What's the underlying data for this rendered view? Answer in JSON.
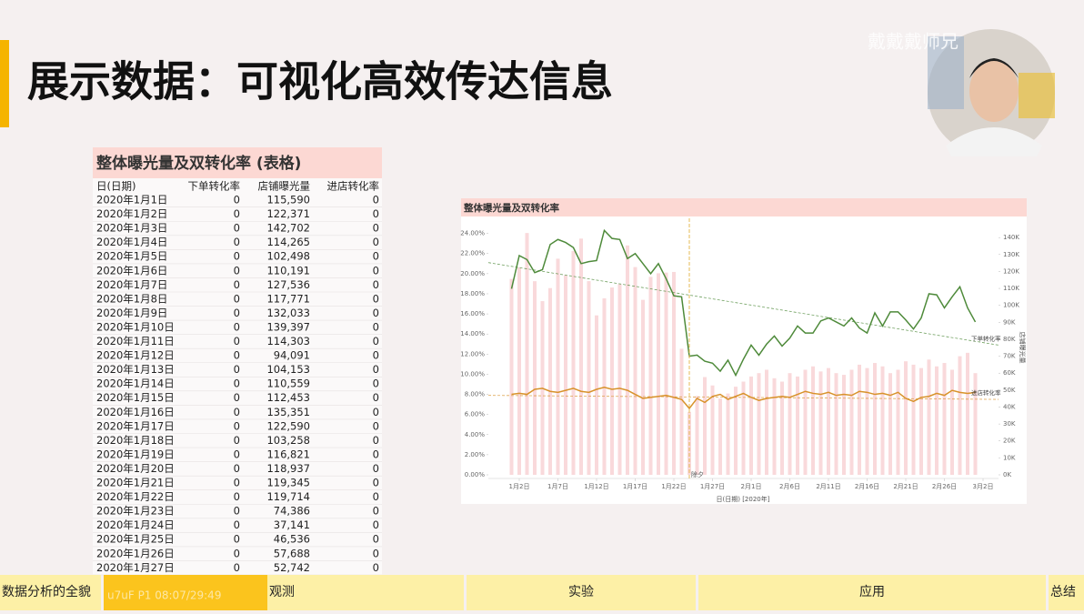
{
  "header": {
    "title": "展示数据：可视化高效传达信息"
  },
  "watermark": {
    "channel": "戴戴戴师兄",
    "player": "u7uF P1 08:07/29:49"
  },
  "table": {
    "title": "整体曝光量及双转化率 (表格)",
    "columns": [
      "日(日期)",
      "下单转化率",
      "店铺曝光量",
      "进店转化率"
    ],
    "rows": [
      [
        "2020年1月1日",
        "0",
        "115,590",
        "0"
      ],
      [
        "2020年1月2日",
        "0",
        "122,371",
        "0"
      ],
      [
        "2020年1月3日",
        "0",
        "142,702",
        "0"
      ],
      [
        "2020年1月4日",
        "0",
        "114,265",
        "0"
      ],
      [
        "2020年1月5日",
        "0",
        "102,498",
        "0"
      ],
      [
        "2020年1月6日",
        "0",
        "110,191",
        "0"
      ],
      [
        "2020年1月7日",
        "0",
        "127,536",
        "0"
      ],
      [
        "2020年1月8日",
        "0",
        "117,771",
        "0"
      ],
      [
        "2020年1月9日",
        "0",
        "132,033",
        "0"
      ],
      [
        "2020年1月10日",
        "0",
        "139,397",
        "0"
      ],
      [
        "2020年1月11日",
        "0",
        "114,303",
        "0"
      ],
      [
        "2020年1月12日",
        "0",
        "94,091",
        "0"
      ],
      [
        "2020年1月13日",
        "0",
        "104,153",
        "0"
      ],
      [
        "2020年1月14日",
        "0",
        "110,559",
        "0"
      ],
      [
        "2020年1月15日",
        "0",
        "112,453",
        "0"
      ],
      [
        "2020年1月16日",
        "0",
        "135,351",
        "0"
      ],
      [
        "2020年1月17日",
        "0",
        "122,590",
        "0"
      ],
      [
        "2020年1月18日",
        "0",
        "103,258",
        "0"
      ],
      [
        "2020年1月19日",
        "0",
        "116,821",
        "0"
      ],
      [
        "2020年1月20日",
        "0",
        "118,937",
        "0"
      ],
      [
        "2020年1月21日",
        "0",
        "119,345",
        "0"
      ],
      [
        "2020年1月22日",
        "0",
        "119,714",
        "0"
      ],
      [
        "2020年1月23日",
        "0",
        "74,386",
        "0"
      ],
      [
        "2020年1月24日",
        "0",
        "37,141",
        "0"
      ],
      [
        "2020年1月25日",
        "0",
        "46,536",
        "0"
      ],
      [
        "2020年1月26日",
        "0",
        "57,688",
        "0"
      ],
      [
        "2020年1月27日",
        "0",
        "52,742",
        "0"
      ]
    ]
  },
  "chart_data": {
    "type": "combo",
    "title": "整体曝光量及双转化率",
    "xlabel": "日(日期) [2020年]",
    "y2label": "店铺曝光量",
    "x": [
      "2020-01-01",
      "2020-01-02",
      "2020-01-03",
      "2020-01-04",
      "2020-01-05",
      "2020-01-06",
      "2020-01-07",
      "2020-01-08",
      "2020-01-09",
      "2020-01-10",
      "2020-01-11",
      "2020-01-12",
      "2020-01-13",
      "2020-01-14",
      "2020-01-15",
      "2020-01-16",
      "2020-01-17",
      "2020-01-18",
      "2020-01-19",
      "2020-01-20",
      "2020-01-21",
      "2020-01-22",
      "2020-01-23",
      "2020-01-24",
      "2020-01-25",
      "2020-01-26",
      "2020-01-27",
      "2020-01-28",
      "2020-01-29",
      "2020-01-30",
      "2020-01-31",
      "2020-02-01",
      "2020-02-02",
      "2020-02-03",
      "2020-02-04",
      "2020-02-05",
      "2020-02-06",
      "2020-02-07",
      "2020-02-08",
      "2020-02-09",
      "2020-02-10",
      "2020-02-11",
      "2020-02-12",
      "2020-02-13",
      "2020-02-14",
      "2020-02-15",
      "2020-02-16",
      "2020-02-17",
      "2020-02-18",
      "2020-02-19",
      "2020-02-20",
      "2020-02-21",
      "2020-02-22",
      "2020-02-23",
      "2020-02-24",
      "2020-02-25",
      "2020-02-26",
      "2020-02-27",
      "2020-02-28",
      "2020-02-29",
      "2020-03-01"
    ],
    "xlim": [
      "2019-12-29",
      "2020-03-04"
    ],
    "xticks": [
      {
        "value": "2020-01-02",
        "label": "1月2日"
      },
      {
        "value": "2020-01-07",
        "label": "1月7日"
      },
      {
        "value": "2020-01-12",
        "label": "1月12日"
      },
      {
        "value": "2020-01-17",
        "label": "1月17日"
      },
      {
        "value": "2020-01-22",
        "label": "1月22日"
      },
      {
        "value": "2020-01-27",
        "label": "1月27日"
      },
      {
        "value": "2020-02-01",
        "label": "2月1日"
      },
      {
        "value": "2020-02-06",
        "label": "2月6日"
      },
      {
        "value": "2020-02-11",
        "label": "2月11日"
      },
      {
        "value": "2020-02-16",
        "label": "2月16日"
      },
      {
        "value": "2020-02-21",
        "label": "2月21日"
      },
      {
        "value": "2020-02-26",
        "label": "2月26日"
      },
      {
        "value": "2020-03-02",
        "label": "3月2日"
      }
    ],
    "ylim": [
      0,
      24.6
    ],
    "yticks": [
      {
        "value": 0,
        "label": "0.00%"
      },
      {
        "value": 2,
        "label": "2.00%"
      },
      {
        "value": 4,
        "label": "4.00%"
      },
      {
        "value": 6,
        "label": "6.00%"
      },
      {
        "value": 8,
        "label": "8.00%"
      },
      {
        "value": 10,
        "label": "10.00%"
      },
      {
        "value": 12,
        "label": "12.00%"
      },
      {
        "value": 14,
        "label": "14.00%"
      },
      {
        "value": 16,
        "label": "16.00%"
      },
      {
        "value": 18,
        "label": "18.00%"
      },
      {
        "value": 20,
        "label": "20.00%"
      },
      {
        "value": 22,
        "label": "22.00%"
      },
      {
        "value": 24,
        "label": "24.00%"
      }
    ],
    "y2lim": [
      0,
      146000
    ],
    "y2ticks": [
      {
        "value": 0,
        "label": "0K"
      },
      {
        "value": 10000,
        "label": "10K"
      },
      {
        "value": 20000,
        "label": "20K"
      },
      {
        "value": 30000,
        "label": "30K"
      },
      {
        "value": 40000,
        "label": "40K"
      },
      {
        "value": 50000,
        "label": "50K"
      },
      {
        "value": 60000,
        "label": "60K"
      },
      {
        "value": 70000,
        "label": "70K"
      },
      {
        "value": 80000,
        "label": "80K"
      },
      {
        "value": 90000,
        "label": "90K"
      },
      {
        "value": 100000,
        "label": "100K"
      },
      {
        "value": 110000,
        "label": "110K"
      },
      {
        "value": 120000,
        "label": "120K"
      },
      {
        "value": 130000,
        "label": "130K"
      },
      {
        "value": 140000,
        "label": "140K"
      }
    ],
    "series": [
      {
        "name": "店铺曝光量",
        "type": "bar",
        "axis": "y2",
        "color": "#f6c9cc",
        "values": [
          115590,
          122371,
          142702,
          114265,
          102498,
          110191,
          127536,
          117771,
          132033,
          139397,
          114303,
          94091,
          104153,
          110559,
          112453,
          135351,
          122590,
          103258,
          116821,
          118937,
          119345,
          119714,
          74386,
          37141,
          46536,
          57688,
          52742,
          45000,
          48000,
          52000,
          55000,
          58000,
          60000,
          62000,
          57000,
          55000,
          60000,
          58000,
          62000,
          64000,
          61000,
          63000,
          60000,
          59000,
          62000,
          65000,
          63000,
          66000,
          64000,
          60000,
          62000,
          67000,
          65000,
          63000,
          68000,
          64000,
          66000,
          62000,
          70000,
          72000,
          60000
        ]
      },
      {
        "name": "下单转化率",
        "type": "line",
        "color": "#4e8a3a",
        "values": [
          18.5,
          21.8,
          21.4,
          20.1,
          20.4,
          22.9,
          23.4,
          23.1,
          22.6,
          21.0,
          21.2,
          21.3,
          24.3,
          23.5,
          23.4,
          21.5,
          22.0,
          21.0,
          20.0,
          21.0,
          19.5,
          17.8,
          17.7,
          11.8,
          11.9,
          11.3,
          11.1,
          10.3,
          11.4,
          9.9,
          11.5,
          12.9,
          11.9,
          13.0,
          13.8,
          12.8,
          13.6,
          14.8,
          14.1,
          14.1,
          15.3,
          15.6,
          15.2,
          14.8,
          15.6,
          14.6,
          14.1,
          16.1,
          14.8,
          16.2,
          16.2,
          15.4,
          14.5,
          15.6,
          18.0,
          17.9,
          16.6,
          17.7,
          18.7,
          16.6,
          15.2
        ],
        "trend": [
          21.1,
          12.9
        ]
      },
      {
        "name": "进店转化率",
        "type": "line",
        "color": "#d8922a",
        "values": [
          8.0,
          8.1,
          8.0,
          8.5,
          8.6,
          8.3,
          8.2,
          8.4,
          8.6,
          8.3,
          8.2,
          8.5,
          8.7,
          8.5,
          8.6,
          8.4,
          8.0,
          7.6,
          7.7,
          7.8,
          7.9,
          7.7,
          7.5,
          6.6,
          7.6,
          7.2,
          7.8,
          8.0,
          7.5,
          7.8,
          8.1,
          7.7,
          7.4,
          7.6,
          7.7,
          7.8,
          7.7,
          8.0,
          8.3,
          8.1,
          8.0,
          8.2,
          7.9,
          8.0,
          7.9,
          8.3,
          8.2,
          8.0,
          8.1,
          7.9,
          8.2,
          7.6,
          7.3,
          7.7,
          7.8,
          8.1,
          7.9,
          8.4,
          8.2,
          8.1,
          8.2
        ],
        "trend": [
          7.9,
          7.5
        ]
      }
    ],
    "annotations": [
      {
        "text": "除夕",
        "x": "2020-01-24"
      }
    ]
  },
  "nav": {
    "items": [
      "数据分析的全貌",
      "观测",
      "实验",
      "应用",
      "总结"
    ]
  }
}
